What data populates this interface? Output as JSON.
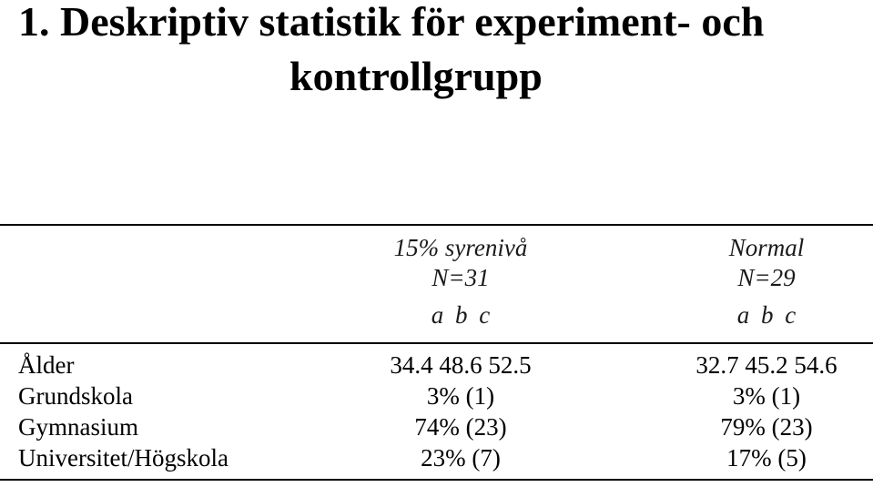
{
  "title": {
    "line1": "1. Deskriptiv statistik för experiment- och",
    "line2": "kontrollgrupp"
  },
  "table": {
    "columns": [
      {
        "name": "15% syrenivå",
        "n": "N=31",
        "subcols": "a b c"
      },
      {
        "name": "Normal",
        "n": "N=29",
        "subcols": "a b c"
      }
    ],
    "rows": [
      {
        "label": "Ålder",
        "values": [
          "34.4 48.6 52.5",
          "32.7 45.2 54.6"
        ]
      },
      {
        "label": "Grundskola",
        "values": [
          "3% (1)",
          "3% (1)"
        ]
      },
      {
        "label": "Gymnasium",
        "values": [
          "74% (23)",
          "79% (23)"
        ]
      },
      {
        "label": "Universitet/Högskola",
        "values": [
          "23% (7)",
          "17% (5)"
        ]
      }
    ]
  }
}
